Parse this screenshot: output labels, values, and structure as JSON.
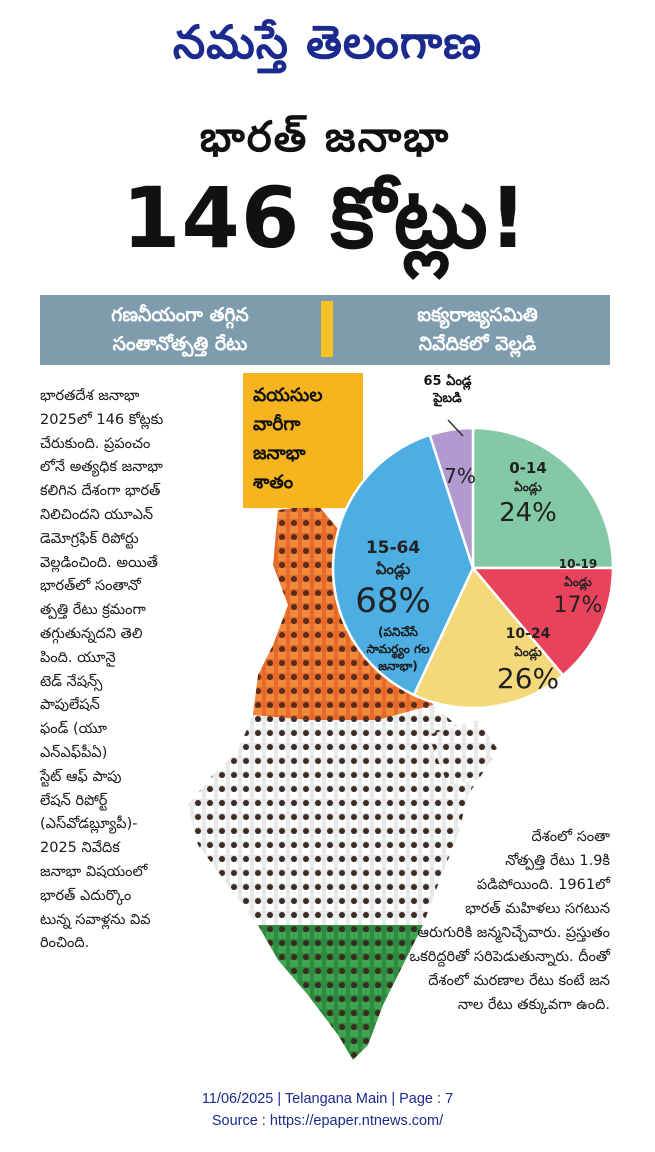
{
  "masthead": {
    "title": "నమస్తే తెలంగాణ"
  },
  "headline": {
    "line1": "భారత్ జనాభా",
    "line2": "146 కోట్లు!"
  },
  "subhead": {
    "left": [
      "గణనీయంగా తగ్గిన",
      "సంతానోత్పత్తి రేటు"
    ],
    "right": [
      "ఐక్యరాజ్యసమితి",
      "నివేదికలో వెల్లడి"
    ]
  },
  "age_box": [
    "వయసుల",
    "వారీగా",
    "జనాభా",
    "శాతం"
  ],
  "body_left": "భారతదేశ జనాభా\n2025లో 146 కోట్లకు\nచేరుకుంది. ప్రపంచం\nలోనే అత్యధిక జనాభా\nకలిగిన దేశంగా భారత్\nనిలిచిందని యూఎన్\nడెమోగ్రఫిక్ రిపోర్టు\nవెల్లడించింది. అయితే\nభారత్‌లో సంతానో\nత్పత్తి రేటు క్రమంగా\nతగ్గుతున్నదని తెలి\nపింది. యూనై\nటెడ్ నేషన్స్\nపాపులేషన్\nఫండ్ (యూ\nఎన్ఎఫ్‌పీఏ)\nస్టేట్ ఆఫ్ పాపు\nలేషన్ రిపోర్ట్\n(ఎస్‌వోడబ్ల్యూపీ)-\n2025 నివేదిక\nజనాభా విషయంలో\nభారత్ ఎదుర్కొం\nటున్న సవాళ్లను వివ\nరించింది.",
  "body_right": "దేశంలో సంతా\nనోత్పత్తి రేటు 1.9కి\nపడిపోయింది. 1961లో\nభారత్ మహిళలు సగటున\nఆరుగురికి జన్మనిచ్చేవారు. ప్రస్తుతం\nఒకరిద్దరితో సరిపెడుతున్నారు. దీంతో\nదేశంలో మరణాల రేటు కంటే జన\nనాల రేటు తక్కువగా ఉంది.",
  "chart_data": {
    "type": "pie",
    "title": "వయసుల వారీగా జనాభా శాతం",
    "slices": [
      {
        "group": "0-14",
        "sub": "ఏండ్లు",
        "value": 24,
        "label": "24%",
        "color": "#84c9a6"
      },
      {
        "group": "10-19",
        "sub": "ఏండ్లు",
        "value": 17,
        "label": "17%",
        "color": "#e8435a"
      },
      {
        "group": "10-24",
        "sub": "ఏండ్లు",
        "value": 26,
        "label": "26%",
        "color": "#f4d87a"
      },
      {
        "group": "15-64",
        "sub": "ఏండ్లు",
        "value": 68,
        "label": "68%",
        "note": "(పనిచేసే\nసామర్థ్యం గల\nజనాభా)",
        "color": "#4daee3"
      },
      {
        "group": "65 ఏండ్ల",
        "sub": "పైబడి",
        "value": 7,
        "label": "7%",
        "color": "#b29ad0"
      }
    ]
  },
  "footer": {
    "line1": "11/06/2025 | Telangana Main | Page : 7",
    "line2": "Source : https://epaper.ntnews.com/"
  }
}
